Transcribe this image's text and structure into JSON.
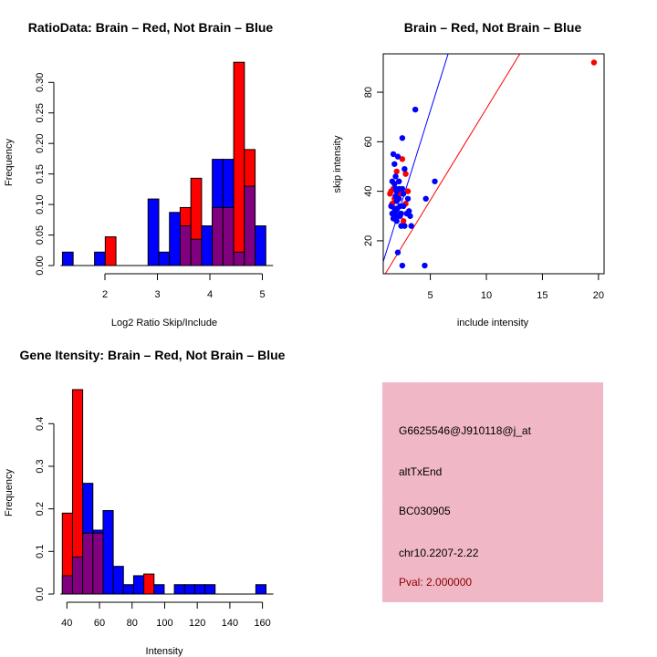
{
  "colors": {
    "brain": "#ff0000",
    "not_brain": "#0000ff",
    "overlap": "#800080",
    "panel_bg": "#f4bfcc",
    "pval": "#8b0000"
  },
  "chart_data": [
    {
      "type": "bar",
      "title": "RatioData: Brain – Red, Not Brain – Blue",
      "xlabel": "Log2 Ratio Skip/Include",
      "ylabel": "Frequency",
      "bin_start": 1.19,
      "bin_width": 0.204,
      "xticks": [
        2,
        3,
        4,
        5
      ],
      "yticks": [
        "0.00",
        "0.05",
        "0.10",
        "0.15",
        "0.20",
        "0.25",
        "0.30"
      ],
      "series": [
        {
          "name": "Brain",
          "values": [
            0,
            0,
            0,
            0,
            0.047,
            0,
            0,
            0,
            0,
            0,
            0,
            0.095,
            0.143,
            0,
            0.095,
            0.095,
            0.333,
            0.19,
            0
          ]
        },
        {
          "name": "Not Brain",
          "values": [
            0.022,
            0,
            0,
            0.022,
            0,
            0,
            0,
            0,
            0.109,
            0.022,
            0.087,
            0.065,
            0.043,
            0.065,
            0.174,
            0.174,
            0.022,
            0.13,
            0.065
          ]
        }
      ]
    },
    {
      "type": "scatter",
      "title": "Brain – Red, Not Brain – Blue",
      "xlabel": "include intensity",
      "ylabel": "skip intensity",
      "xticks": [
        5,
        10,
        15,
        20
      ],
      "yticks": [
        20,
        40,
        60,
        80
      ],
      "xlim": [
        0.8,
        20.5
      ],
      "ylim": [
        6.7,
        95.5
      ],
      "lines": [
        {
          "name": "Not Brain fit",
          "slope": 14.5,
          "intercept": 0
        },
        {
          "name": "Brain fit",
          "slope": 7.4,
          "intercept": -0.6
        }
      ],
      "series": [
        {
          "name": "Brain",
          "points": [
            [
              19.6,
              92
            ],
            [
              2.5,
              53
            ],
            [
              2.8,
              47
            ],
            [
              2.0,
              48
            ],
            [
              1.5,
              40
            ],
            [
              1.4,
              39
            ],
            [
              1.7,
              41
            ],
            [
              2.3,
              39
            ],
            [
              3.0,
              40
            ],
            [
              2.8,
              35
            ],
            [
              1.6,
              35
            ],
            [
              2.6,
              28
            ],
            [
              2.2,
              44
            ],
            [
              1.8,
              37
            ]
          ]
        },
        {
          "name": "Not Brain",
          "points": [
            [
              3.66,
              73
            ],
            [
              2.5,
              61.5
            ],
            [
              5.4,
              44
            ],
            [
              4.6,
              37
            ],
            [
              4.5,
              10
            ],
            [
              2.5,
              10
            ],
            [
              2.1,
              15.3
            ],
            [
              3.3,
              26
            ],
            [
              2.4,
              26
            ],
            [
              2.7,
              26
            ],
            [
              1.7,
              55
            ],
            [
              2.1,
              54
            ],
            [
              1.8,
              51
            ],
            [
              1.9,
              46
            ],
            [
              2.7,
              49
            ],
            [
              1.6,
              44
            ],
            [
              1.8,
              43
            ],
            [
              1.9,
              41
            ],
            [
              2.2,
              41
            ],
            [
              2.5,
              41
            ],
            [
              1.9,
              38
            ],
            [
              2.2,
              37
            ],
            [
              2.0,
              36
            ],
            [
              2.3,
              34
            ],
            [
              2.6,
              34
            ],
            [
              3.0,
              37
            ],
            [
              1.8,
              33
            ],
            [
              2.0,
              33
            ],
            [
              1.6,
              31
            ],
            [
              1.8,
              30
            ],
            [
              2.1,
              30
            ],
            [
              2.4,
              31
            ],
            [
              3.1,
              32
            ],
            [
              3.2,
              30
            ],
            [
              2.9,
              31
            ],
            [
              1.7,
              29
            ],
            [
              2.0,
              28
            ],
            [
              2.3,
              30
            ],
            [
              1.9,
              32
            ],
            [
              2.2,
              44
            ],
            [
              2.0,
              40
            ],
            [
              1.5,
              34
            ],
            [
              2.6,
              39
            ]
          ]
        }
      ]
    },
    {
      "type": "bar",
      "title": "Gene Itensity: Brain – Red, Not Brain – Blue",
      "xlabel": "Intensity",
      "ylabel": "Frequency",
      "bin_start": 37.2,
      "bin_width": 6.25,
      "xticks": [
        40,
        60,
        80,
        100,
        120,
        140,
        160
      ],
      "yticks": [
        "0.0",
        "0.1",
        "0.2",
        "0.3",
        "0.4"
      ],
      "series": [
        {
          "name": "Brain",
          "values": [
            0.19,
            0.48,
            0.143,
            0.143,
            0,
            0,
            0,
            0,
            0.047,
            0,
            0,
            0,
            0,
            0,
            0,
            0,
            0,
            0,
            0,
            0
          ]
        },
        {
          "name": "Not Brain",
          "values": [
            0.043,
            0.087,
            0.26,
            0.15,
            0.196,
            0.065,
            0.022,
            0.043,
            0,
            0.022,
            0,
            0.022,
            0.022,
            0.022,
            0.022,
            0,
            0,
            0,
            0,
            0.022
          ]
        }
      ]
    }
  ],
  "info_panel": {
    "probe_id": "G6625546@J910118@j_at",
    "event_type": "altTxEnd",
    "accession": "BC030905",
    "location": "chr10.2207-2.22",
    "pval": "Pval: 2.000000"
  }
}
